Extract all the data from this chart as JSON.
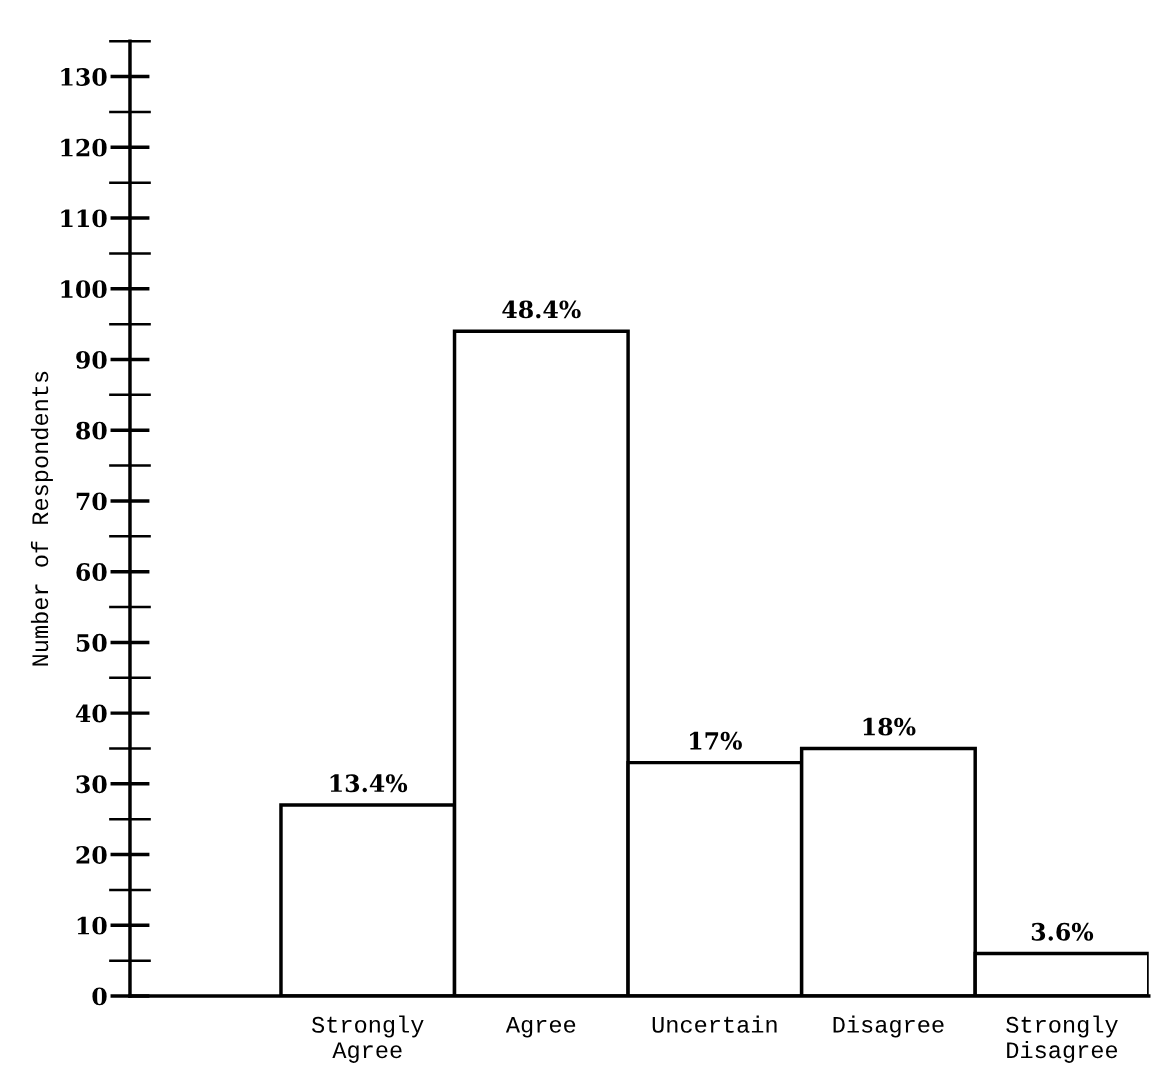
{
  "chart_data": {
    "type": "bar",
    "ylabel": "Number of Respondents",
    "categories": [
      "Strongly\nAgree",
      "Agree",
      "Uncertain",
      "Disagree",
      "Strongly\nDisagree"
    ],
    "values": [
      27,
      94,
      33,
      35,
      6
    ],
    "annotations": [
      {
        "text": "13.4%",
        "x": "Strongly\nAgree",
        "y": 27
      },
      {
        "text": "48.4%",
        "x": "Agree",
        "y": 94
      },
      {
        "text": "17%",
        "x": "Uncertain",
        "y": 33
      },
      {
        "text": "18%",
        "x": "Disagree",
        "y": 35
      },
      {
        "text": "3.6%",
        "x": "Strongly\nDisagree",
        "y": 6
      }
    ],
    "color": "#ffffff",
    "ylim": [
      0,
      135
    ],
    "yticks": [
      0,
      10,
      20,
      30,
      40,
      50,
      60,
      70,
      80,
      90,
      100,
      110,
      120,
      130
    ],
    "grid": false,
    "legend": false
  }
}
